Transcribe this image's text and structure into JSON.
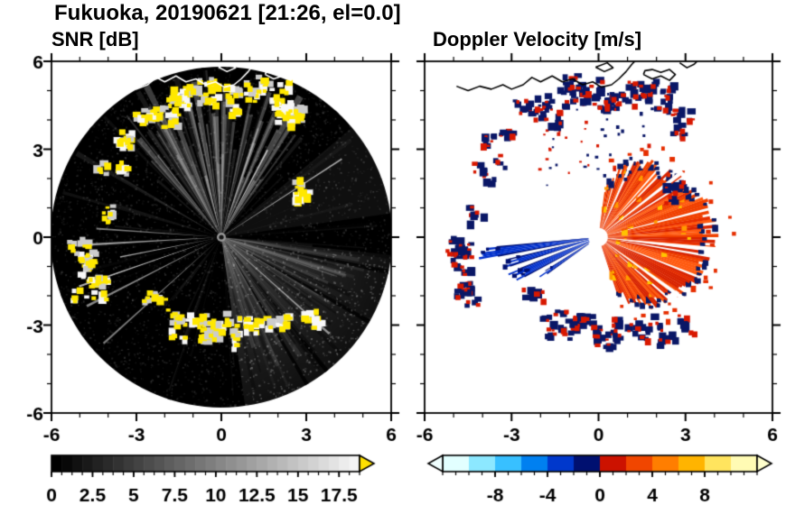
{
  "figure": {
    "title": "Fukuoka, 20190621 [21:26, el=0.0]",
    "background": "#ffffff"
  },
  "chart_data": [
    {
      "type": "radar_ppi",
      "panel": "snr",
      "title": "SNR [dB]",
      "xlim": [
        -6,
        6
      ],
      "ylim": [
        -6,
        6
      ],
      "xticks": [
        -6,
        -3,
        0,
        3,
        6
      ],
      "yticks": [
        -6,
        -3,
        0,
        3,
        6
      ],
      "minor_tick_step": 1,
      "y_tick_labels_shown": true,
      "scan": {
        "center": [
          0,
          0
        ],
        "radius": 5.92,
        "no_echo_color": "#000000"
      },
      "colorbar": {
        "orientation": "horizontal",
        "range": [
          0,
          18.75
        ],
        "tick_labels": [
          0,
          2.5,
          5,
          7.5,
          10,
          12.5,
          15,
          17.5
        ],
        "minor_tick_step": 0.625,
        "colormap": "black-to-white",
        "segments": 30,
        "over_arrow_color": "#ffe000"
      },
      "features": {
        "coastline_color": "#ffffff",
        "high_snr_blob_color": "#ffe800",
        "blob_fringe_colors": [
          "#cccccc",
          "#f8f8f8"
        ],
        "gray_fan_sectors": [
          {
            "az_deg": [
              -82,
              -6
            ]
          },
          {
            "az_deg": [
              8,
              40
            ]
          }
        ],
        "streak_fan": {
          "az_deg": [
            52,
            132
          ],
          "rays": 70,
          "alpha": [
            0.05,
            0.3
          ],
          "len": [
            2.2,
            5.9
          ]
        },
        "bright_rays_az_deg": [
          33,
          62,
          176,
          183,
          191,
          199,
          207,
          222,
          318
        ],
        "shadow_rays_az_deg": [
          96,
          85,
          47,
          5,
          -12,
          -30,
          -52,
          140,
          172,
          200,
          215,
          252,
          300
        ],
        "noise_dots": 3200
      }
    },
    {
      "type": "radar_ppi",
      "panel": "doppler",
      "title": "Doppler Velocity [m/s]",
      "xlim": [
        -6,
        6
      ],
      "ylim": [
        -6,
        6
      ],
      "xticks": [
        -6,
        -3,
        0,
        3,
        6
      ],
      "yticks": [
        -6,
        -3,
        0,
        3,
        6
      ],
      "minor_tick_step": 1,
      "y_tick_labels_shown": false,
      "scan": {
        "center": [
          0,
          0
        ],
        "radius": 5.92,
        "no_echo_color": "#ffffff"
      },
      "colorbar": {
        "orientation": "horizontal",
        "range": [
          -12,
          12
        ],
        "tick_labels": [
          -8,
          -4,
          0,
          4,
          8
        ],
        "minor_tick_step": 1,
        "colormap_segments": [
          "#e2ffff",
          "#8ce8ff",
          "#38c0ff",
          "#0080f0",
          "#0038cc",
          "#001070",
          "#cc1200",
          "#f04600",
          "#ff7e00",
          "#ffb400",
          "#ffe45e",
          "#fffbb4"
        ],
        "under_arrow_color": "#f0ffff",
        "over_arrow_color": "#ffffcc"
      },
      "features": {
        "coastline_color": "#000000",
        "away_fan": {
          "az_deg": [
            -72,
            82
          ],
          "r_inner": 0.32,
          "r_max_profile": [
            [
              -72,
              2.0
            ],
            [
              -55,
              2.9
            ],
            [
              -40,
              3.3
            ],
            [
              -20,
              3.7
            ],
            [
              0,
              3.85
            ],
            [
              15,
              3.8
            ],
            [
              35,
              3.3
            ],
            [
              55,
              3.0
            ],
            [
              70,
              2.5
            ],
            [
              82,
              1.7
            ]
          ],
          "main_colors": [
            "#e62e00",
            "#f04000",
            "#d82400",
            "#ff5a10"
          ],
          "fleck_colors": [
            "#ff9a00",
            "#ffc400"
          ],
          "edge_fleck_color": "#0a1a66",
          "white_slits_az_deg": [
            66,
            38,
            -6,
            -36
          ]
        },
        "toward_beams": [
          {
            "az_deg": 188,
            "width_deg": 5,
            "r": [
              0.35,
              3.9
            ]
          },
          {
            "az_deg": 196,
            "width_deg": 4,
            "r": [
              0.35,
              3.55
            ]
          },
          {
            "az_deg": 205,
            "width_deg": 6,
            "r": [
              0.35,
              3.2
            ]
          },
          {
            "az_deg": 214,
            "width_deg": 3,
            "r": [
              0.4,
              2.4
            ]
          }
        ],
        "toward_color": "#0030cc",
        "toward_edge_color": "#001070",
        "patch_negative_color": "#0a1766",
        "patch_positive_color": "#d81800"
      }
    }
  ],
  "echo_clusters": [
    {
      "az": 58,
      "r": 4.8,
      "az_spread": 7,
      "r_spread": 0.5,
      "blobs": 6
    },
    {
      "az": 70,
      "r": 5.3,
      "az_spread": 7,
      "r_spread": 0.4,
      "blobs": 6
    },
    {
      "az": 82,
      "r": 4.7,
      "az_spread": 7,
      "r_spread": 0.6,
      "blobs": 6
    },
    {
      "az": 95,
      "r": 5.1,
      "az_spread": 7,
      "r_spread": 0.5,
      "blobs": 6
    },
    {
      "az": 108,
      "r": 4.6,
      "az_spread": 7,
      "r_spread": 0.6,
      "blobs": 6
    },
    {
      "az": 120,
      "r": 5.0,
      "az_spread": 6,
      "r_spread": 0.4,
      "blobs": 4
    },
    {
      "az": 133,
      "r": 4.7,
      "az_spread": 6,
      "r_spread": 0.5,
      "blobs": 4
    },
    {
      "az": 147,
      "r": 4.4,
      "az_spread": 5,
      "r_spread": 0.4,
      "blobs": 3
    },
    {
      "az": 170,
      "r": 4.1,
      "az_spread": 4,
      "r_spread": 0.3,
      "blobs": 2
    },
    {
      "az": 187,
      "r": 4.9,
      "az_spread": 5,
      "r_spread": 0.4,
      "blobs": 5
    },
    {
      "az": 196,
      "r": 4.6,
      "az_spread": 5,
      "r_spread": 0.4,
      "blobs": 4
    },
    {
      "az": 204,
      "r": 5.0,
      "az_spread": 4,
      "r_spread": 0.4,
      "blobs": 3
    },
    {
      "az": 222,
      "r": 3.1,
      "az_spread": 4,
      "r_spread": 0.3,
      "blobs": 2
    },
    {
      "az": 243,
      "r": 3.4,
      "az_spread": 6,
      "r_spread": 0.4,
      "blobs": 4
    },
    {
      "az": 256,
      "r": 3.3,
      "az_spread": 6,
      "r_spread": 0.4,
      "blobs": 4
    },
    {
      "az": 268,
      "r": 3.2,
      "az_spread": 6,
      "r_spread": 0.4,
      "blobs": 4
    },
    {
      "az": 281,
      "r": 3.4,
      "az_spread": 6,
      "r_spread": 0.4,
      "blobs": 4
    },
    {
      "az": 293,
      "r": 3.6,
      "az_spread": 5,
      "r_spread": 0.4,
      "blobs": 3
    },
    {
      "az": 306,
      "r": 3.9,
      "az_spread": 5,
      "r_spread": 0.4,
      "blobs": 3
    },
    {
      "az": 318,
      "r": 4.2,
      "az_spread": 4,
      "r_spread": 0.3,
      "blobs": 2
    },
    {
      "az": 30,
      "r": 2.95,
      "az_spread": 5,
      "r_spread": 0.3,
      "blobs": 3
    }
  ],
  "coastline": [
    [
      [
        -4.9,
        5.15
      ],
      [
        -4.5,
        5.0
      ],
      [
        -4.1,
        5.15
      ],
      [
        -3.7,
        5.05
      ],
      [
        -3.3,
        5.2
      ],
      [
        -3.0,
        5.05
      ],
      [
        -2.6,
        5.2
      ],
      [
        -2.3,
        5.45
      ],
      [
        -2.0,
        5.3
      ],
      [
        -1.6,
        5.5
      ],
      [
        -1.25,
        5.3
      ],
      [
        -0.9,
        5.4
      ],
      [
        -0.55,
        5.2
      ],
      [
        -0.2,
        5.3
      ],
      [
        0.1,
        5.12
      ],
      [
        0.45,
        5.2
      ],
      [
        0.7,
        5.4
      ],
      [
        0.95,
        5.65
      ],
      [
        1.15,
        5.9
      ],
      [
        1.3,
        6.05
      ]
    ],
    [
      [
        1.55,
        5.55
      ],
      [
        1.85,
        5.4
      ],
      [
        2.15,
        5.5
      ],
      [
        2.45,
        5.35
      ],
      [
        2.65,
        5.55
      ],
      [
        2.45,
        5.72
      ],
      [
        2.15,
        5.62
      ],
      [
        1.85,
        5.72
      ],
      [
        1.6,
        5.68
      ],
      [
        1.55,
        5.55
      ]
    ],
    [
      [
        2.8,
        5.95
      ],
      [
        3.05,
        5.78
      ],
      [
        3.3,
        5.9
      ],
      [
        3.45,
        6.05
      ]
    ],
    [
      [
        -0.1,
        5.8
      ],
      [
        0.2,
        5.65
      ],
      [
        0.5,
        5.78
      ],
      [
        0.3,
        5.95
      ],
      [
        -0.1,
        5.8
      ]
    ]
  ]
}
